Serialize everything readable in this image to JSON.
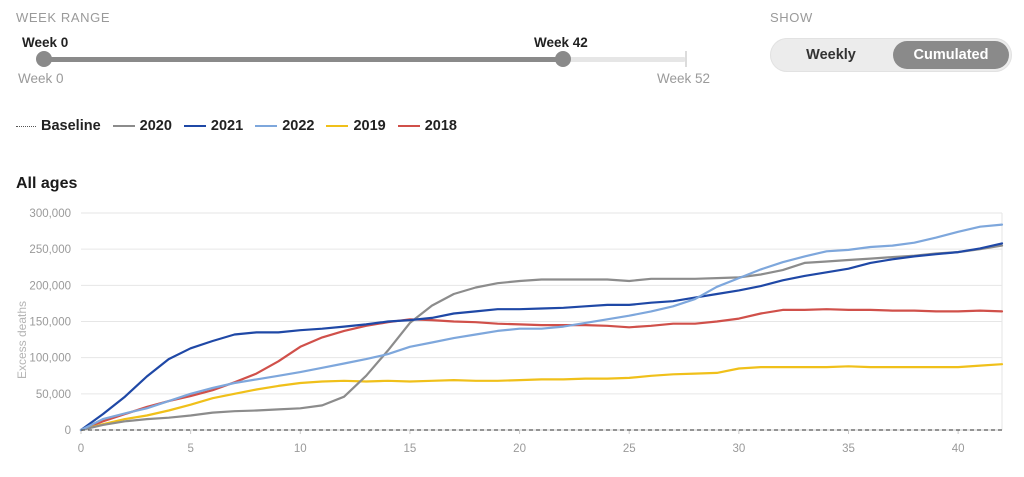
{
  "controls": {
    "week_range_label": "WEEK RANGE",
    "range_start_value": "Week 0",
    "range_end_value": "Week 42",
    "range_min_label": "Week 0",
    "range_max_label": "Week 52",
    "range_selected_fraction": 0.8077,
    "show_label": "SHOW",
    "options": [
      "Weekly",
      "Cumulated"
    ],
    "selected_option": "Cumulated"
  },
  "colors": {
    "baseline": "#555555",
    "2020": "#8c8c8c",
    "2021": "#1f48a6",
    "2022": "#7ea7dc",
    "2019": "#f0c01a",
    "2018": "#d0504a"
  },
  "chart_data": {
    "type": "line",
    "title": "All ages",
    "xlabel": "",
    "ylabel": "Excess deaths",
    "xlim": [
      0,
      42
    ],
    "ylim": [
      0,
      300000
    ],
    "grid": true,
    "legend_placement": "top-left",
    "x_ticks": [
      0,
      5,
      10,
      15,
      20,
      25,
      30,
      35,
      40
    ],
    "y_ticks": [
      0,
      50000,
      100000,
      150000,
      200000,
      250000,
      300000
    ],
    "y_tick_labels": [
      "0",
      "50,000",
      "100,000",
      "150,000",
      "200,000",
      "250,000",
      "300,000"
    ],
    "x": [
      0,
      1,
      2,
      3,
      4,
      5,
      6,
      7,
      8,
      9,
      10,
      11,
      12,
      13,
      14,
      15,
      16,
      17,
      18,
      19,
      20,
      21,
      22,
      23,
      24,
      25,
      26,
      27,
      28,
      29,
      30,
      31,
      32,
      33,
      34,
      35,
      36,
      37,
      38,
      39,
      40,
      41,
      42
    ],
    "baseline": {
      "name": "Baseline",
      "value": 0
    },
    "series": [
      {
        "name": "2020",
        "values": [
          0,
          7000,
          12000,
          15000,
          17000,
          20000,
          24000,
          26000,
          27000,
          28500,
          30000,
          34000,
          46000,
          75000,
          110000,
          148000,
          172000,
          188000,
          197000,
          203000,
          206000,
          208000,
          208000,
          208000,
          208000,
          206000,
          209000,
          209000,
          209000,
          210000,
          211000,
          215000,
          221000,
          231000,
          233000,
          235000,
          237000,
          239000,
          241000,
          244000,
          246000,
          250000,
          255000
        ]
      },
      {
        "name": "2021",
        "values": [
          0,
          22000,
          46000,
          74000,
          98000,
          113000,
          123000,
          132000,
          135000,
          135000,
          138000,
          140000,
          143000,
          146000,
          150000,
          152000,
          155000,
          161000,
          164000,
          167000,
          167000,
          168000,
          169000,
          171000,
          173000,
          173000,
          176000,
          178000,
          183000,
          188000,
          193000,
          199000,
          207000,
          213000,
          218000,
          223000,
          231000,
          236000,
          240000,
          243000,
          246000,
          251000,
          258000
        ]
      },
      {
        "name": "2022",
        "values": [
          0,
          15000,
          23000,
          30000,
          40000,
          50000,
          58000,
          65000,
          70000,
          75000,
          80000,
          86000,
          92000,
          98000,
          105000,
          115000,
          121000,
          127000,
          132000,
          137000,
          140000,
          140000,
          143000,
          148000,
          153000,
          158000,
          164000,
          171000,
          181000,
          198000,
          210000,
          222000,
          232000,
          240000,
          247000,
          249000,
          253000,
          255000,
          259000,
          266000,
          274000,
          281000,
          284000
        ]
      },
      {
        "name": "2019",
        "values": [
          0,
          8000,
          15000,
          20000,
          27000,
          35000,
          44000,
          50000,
          56000,
          61000,
          65000,
          67000,
          68000,
          67000,
          68000,
          67000,
          68000,
          69000,
          68000,
          68000,
          69000,
          70000,
          70000,
          71000,
          71000,
          72000,
          75000,
          77000,
          78000,
          79000,
          85000,
          87000,
          87000,
          87000,
          87000,
          88000,
          87000,
          87000,
          87000,
          87000,
          87000,
          89000,
          91000
        ]
      },
      {
        "name": "2018",
        "values": [
          0,
          12000,
          22000,
          32000,
          40000,
          47000,
          55000,
          66000,
          78000,
          95000,
          115000,
          128000,
          137000,
          144000,
          149000,
          153000,
          152000,
          150000,
          149000,
          147000,
          146000,
          145000,
          145000,
          145000,
          144000,
          142000,
          144000,
          147000,
          147000,
          150000,
          154000,
          161000,
          166000,
          166000,
          167000,
          166000,
          166000,
          165000,
          165000,
          164000,
          164000,
          165000,
          164000
        ]
      }
    ]
  }
}
